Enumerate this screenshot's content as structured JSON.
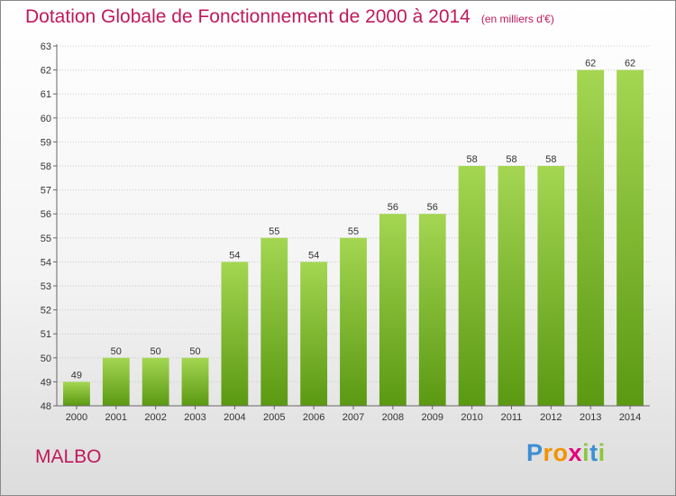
{
  "title": "Dotation Globale de Fonctionnement de 2000 à 2014",
  "subtitle": "(en milliers d'€)",
  "commune": "MALBO",
  "logo": {
    "text": "Proxiti",
    "letters": [
      "P",
      "r",
      "o",
      "x",
      "i",
      "t",
      "i"
    ],
    "letter_colors": [
      "#3b8fd4",
      "#f39200",
      "#f39200",
      "#e3007b",
      "#8cc63f",
      "#3b8fd4",
      "#8cc63f"
    ]
  },
  "colors": {
    "bar_top": "#a4d652",
    "bar_bottom": "#5b9912",
    "grid": "#c8c8c8",
    "axis_text": "#333333",
    "title": "#c0195b"
  },
  "chart_data": {
    "type": "bar",
    "title": "Dotation Globale de Fonctionnement de 2000 à 2014",
    "subtitle": "(en milliers d'€)",
    "categories": [
      "2000",
      "2001",
      "2002",
      "2003",
      "2004",
      "2005",
      "2006",
      "2007",
      "2008",
      "2009",
      "2010",
      "2011",
      "2012",
      "2013",
      "2014"
    ],
    "values": [
      49,
      50,
      50,
      50,
      54,
      55,
      54,
      55,
      56,
      56,
      58,
      58,
      58,
      62,
      62
    ],
    "ylim": [
      48,
      63
    ],
    "yticks": [
      48,
      49,
      50,
      51,
      52,
      53,
      54,
      55,
      56,
      57,
      58,
      59,
      60,
      61,
      62,
      63
    ],
    "xlabel": "",
    "ylabel": "",
    "grid": true
  }
}
